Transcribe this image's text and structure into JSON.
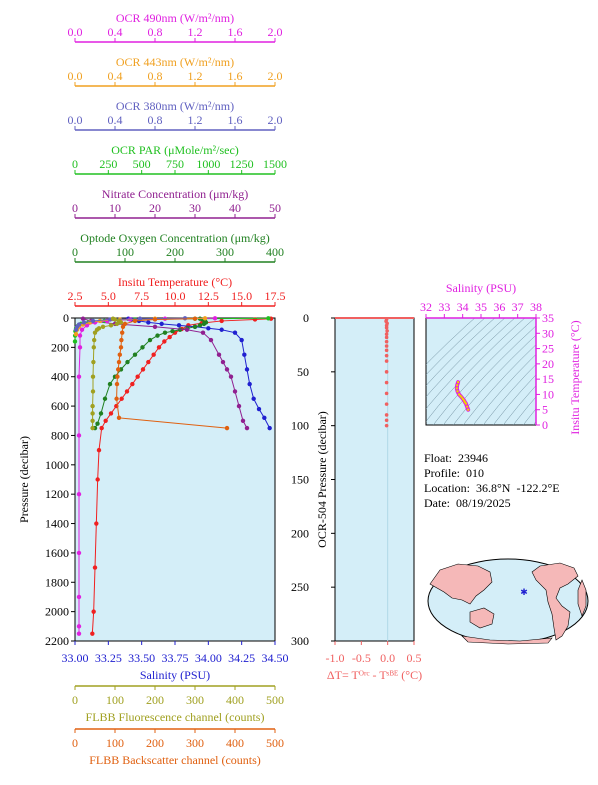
{
  "colors": {
    "ocr490": "#e020e0",
    "ocr443": "#f0a020",
    "ocr380": "#6060c0",
    "par": "#20c020",
    "nitrate": "#902090",
    "oxygen": "#208020",
    "temperature": "#f02020",
    "salinity": "#2020d0",
    "fluor": "#a0a020",
    "backscatter": "#e06010",
    "delta_t": "#f06060",
    "plot_bg": "#d4eef8",
    "magenta_axis": "#e020e0",
    "map_land": "#f5b8b8",
    "map_ocean": "#d4eef8"
  },
  "top_axes": [
    {
      "key": "ocr490",
      "title": "OCR 490nm (W/m²/nm)",
      "ticks": [
        "0.0",
        "0.4",
        "0.8",
        "1.2",
        "1.6",
        "2.0"
      ]
    },
    {
      "key": "ocr443",
      "title": "OCR 443nm (W/m²/nm)",
      "ticks": [
        "0.0",
        "0.4",
        "0.8",
        "1.2",
        "1.6",
        "2.0"
      ]
    },
    {
      "key": "ocr380",
      "title": "OCR 380nm (W/m²/nm)",
      "ticks": [
        "0.0",
        "0.4",
        "0.8",
        "1.2",
        "1.6",
        "2.0"
      ]
    },
    {
      "key": "par",
      "title": "OCR PAR (μMole/m²/sec)",
      "ticks": [
        "0",
        "250",
        "500",
        "750",
        "1000",
        "1250",
        "1500"
      ]
    },
    {
      "key": "nitrate",
      "title": "Nitrate Concentration (μm/kg)",
      "ticks": [
        "0",
        "10",
        "20",
        "30",
        "40",
        "50"
      ]
    },
    {
      "key": "oxygen",
      "title": "Optode Oxygen Concentration (μm/kg)",
      "ticks": [
        "0",
        "100",
        "200",
        "300",
        "400"
      ]
    },
    {
      "key": "temperature",
      "title": "Insitu Temperature (°C)",
      "ticks": [
        "2.5",
        "5.0",
        "7.5",
        "10.0",
        "12.5",
        "15.0",
        "17.5"
      ]
    }
  ],
  "bottom_axes": [
    {
      "key": "salinity",
      "title": "Salinity (PSU)",
      "ticks": [
        "33.00",
        "33.25",
        "33.50",
        "33.75",
        "34.00",
        "34.25",
        "34.50"
      ]
    },
    {
      "key": "fluor",
      "title": "FLBB Fluorescence channel (counts)",
      "ticks": [
        "0",
        "100",
        "200",
        "300",
        "400",
        "500"
      ]
    },
    {
      "key": "backscatter",
      "title": "FLBB Backscatter channel (counts)",
      "ticks": [
        "0",
        "100",
        "200",
        "300",
        "400",
        "500"
      ]
    }
  ],
  "main_y_axis": {
    "title": "Pressure (decibar)",
    "ticks": [
      "0",
      "200",
      "400",
      "600",
      "800",
      "1000",
      "1200",
      "1400",
      "1600",
      "1800",
      "2000",
      "2200"
    ]
  },
  "dt_axis": {
    "title": "ΔT= Tᴼʳᶜ - Tˢᴮᴱ (°C)",
    "x_ticks": [
      "-1.0",
      "-0.5",
      "0.0",
      "0.5"
    ],
    "y_title": "OCR-504 Pressure (decibar)",
    "y_ticks": [
      "0",
      "50",
      "100",
      "150",
      "200",
      "250",
      "300"
    ]
  },
  "ts_axis": {
    "title": "Salinity (PSU)",
    "x_ticks": [
      "32",
      "33",
      "34",
      "35",
      "36",
      "37",
      "38"
    ],
    "y_title": "Insitu Temperature (°C)",
    "y_ticks": [
      "0",
      "5",
      "10",
      "15",
      "20",
      "25",
      "30",
      "35"
    ]
  },
  "info": {
    "float": "Float:  23946",
    "profile": "Profile:  010",
    "location": "Location:  36.8°N  -122.2°E",
    "date": "Date:  08/19/2025"
  },
  "chart_data": [
    {
      "type": "line",
      "title": "",
      "ylabel": "Pressure (decibar)",
      "ylim": [
        2200,
        0
      ],
      "y_inverted": true,
      "series": [
        {
          "name": "Insitu Temperature (°C)",
          "xlim": [
            2.5,
            17.5
          ],
          "x": [
            17.2,
            16.0,
            13.5,
            12.0,
            11.0,
            10.5,
            10.0,
            9.6,
            9.2,
            8.8,
            8.4,
            8.0,
            7.6,
            7.2,
            6.8,
            6.4,
            6.0,
            5.6,
            5.2,
            4.8,
            4.5,
            4.3,
            4.2,
            4.1,
            4.0,
            3.9,
            3.8
          ],
          "y": [
            5,
            10,
            20,
            35,
            50,
            75,
            100,
            130,
            160,
            200,
            250,
            300,
            350,
            400,
            450,
            500,
            550,
            600,
            650,
            700,
            750,
            900,
            1100,
            1400,
            1700,
            2000,
            2150
          ]
        },
        {
          "name": "Salinity (PSU)",
          "xlim": [
            33.0,
            34.5
          ],
          "x": [
            33.4,
            33.42,
            33.48,
            33.55,
            33.65,
            33.78,
            33.9,
            34.0,
            34.1,
            34.2,
            34.25,
            34.27,
            34.29,
            34.31,
            34.34,
            34.38,
            34.42,
            34.46
          ],
          "y": [
            5,
            10,
            20,
            30,
            40,
            50,
            60,
            70,
            80,
            100,
            150,
            250,
            350,
            450,
            550,
            620,
            680,
            750
          ]
        },
        {
          "name": "Optode Oxygen Concentration (μm/kg)",
          "xlim": [
            0,
            400
          ],
          "x": [
            250,
            255,
            260,
            262,
            258,
            250,
            240,
            225,
            210,
            195,
            180,
            165,
            150,
            135,
            120,
            105,
            92,
            80,
            70,
            60,
            52,
            45,
            40
          ],
          "y": [
            5,
            10,
            20,
            30,
            40,
            50,
            60,
            70,
            80,
            90,
            100,
            120,
            150,
            200,
            250,
            300,
            350,
            400,
            450,
            550,
            650,
            720,
            750
          ]
        },
        {
          "name": "Nitrate Concentration (μm/kg)",
          "xlim": [
            0,
            50
          ],
          "x": [
            2,
            4,
            10,
            20,
            28,
            32,
            34,
            36,
            37,
            38,
            39,
            40,
            41,
            42,
            43
          ],
          "y": [
            5,
            20,
            40,
            60,
            80,
            100,
            150,
            250,
            300,
            350,
            400,
            500,
            600,
            700,
            750
          ]
        },
        {
          "name": "OCR PAR (μMole/m²/sec)",
          "xlim": [
            0,
            1500
          ],
          "x": [
            1450,
            900,
            450,
            220,
            100,
            45,
            20,
            8,
            3,
            1,
            0
          ],
          "y": [
            2,
            5,
            10,
            20,
            30,
            40,
            55,
            70,
            90,
            120,
            160
          ]
        },
        {
          "name": "OCR 490nm (W/m²/nm)",
          "xlim": [
            0,
            2.0
          ],
          "x": [
            1.4,
            0.9,
            0.55,
            0.32,
            0.2,
            0.12,
            0.07,
            0.05,
            0.05,
            0.04,
            0.04,
            0.04,
            0.04,
            0.04,
            0.04,
            0.04
          ],
          "y": [
            2,
            5,
            10,
            20,
            30,
            50,
            80,
            120,
            200,
            400,
            800,
            1200,
            1600,
            1900,
            2100,
            2150
          ]
        },
        {
          "name": "OCR 443nm (W/m²/nm)",
          "xlim": [
            0,
            2.0
          ],
          "x": [
            1.3,
            0.8,
            0.45,
            0.25,
            0.15,
            0.08,
            0.04,
            0.02,
            0.01
          ],
          "y": [
            2,
            5,
            10,
            20,
            30,
            45,
            60,
            80,
            110
          ]
        },
        {
          "name": "OCR 380nm (W/m²/nm)",
          "xlim": [
            0,
            2.0
          ],
          "x": [
            1.1,
            0.65,
            0.35,
            0.18,
            0.09,
            0.04,
            0.02,
            0.01
          ],
          "y": [
            2,
            5,
            10,
            20,
            30,
            45,
            60,
            80
          ]
        },
        {
          "name": "FLBB Fluorescence channel (counts)",
          "xlim": [
            0,
            500
          ],
          "x": [
            95,
            100,
            110,
            115,
            105,
            90,
            70,
            60,
            55,
            50,
            48,
            47,
            46,
            45,
            45,
            44,
            44,
            44,
            44
          ],
          "y": [
            5,
            10,
            20,
            30,
            40,
            50,
            60,
            70,
            80,
            100,
            150,
            200,
            300,
            400,
            500,
            600,
            650,
            700,
            750
          ]
        },
        {
          "name": "FLBB Backscatter channel (counts)",
          "xlim": [
            0,
            500
          ],
          "x": [
            300,
            200,
            150,
            125,
            120,
            118,
            116,
            115,
            112,
            110,
            108,
            106,
            105,
            104,
            110,
            380
          ],
          "y": [
            5,
            10,
            20,
            40,
            60,
            100,
            150,
            200,
            250,
            300,
            350,
            400,
            450,
            550,
            680,
            750
          ]
        }
      ]
    },
    {
      "type": "scatter",
      "xlabel": "ΔT= Tᴼʳᶜ - Tˢᴮᴱ (°C)",
      "ylabel": "OCR-504 Pressure (decibar)",
      "xlim": [
        -1.0,
        0.5
      ],
      "ylim": [
        300,
        0
      ],
      "series": [
        {
          "name": "",
          "x": [
            -0.02,
            -0.03,
            -0.01,
            -0.02,
            -0.02,
            -0.01,
            -0.02,
            -0.02,
            -0.02,
            -0.02,
            -0.02,
            -0.02,
            -0.02,
            -0.02,
            -0.02,
            -0.02,
            -0.02,
            -0.02,
            -0.02,
            -0.02
          ],
          "y": [
            1,
            3,
            5,
            7,
            9,
            12,
            15,
            18,
            22,
            26,
            30,
            35,
            40,
            50,
            60,
            70,
            80,
            90,
            95,
            100
          ]
        }
      ]
    },
    {
      "type": "line",
      "xlabel": "Salinity (PSU)",
      "ylabel": "Insitu Temperature (°C)",
      "xlim": [
        32,
        38
      ],
      "ylim": [
        0,
        35
      ],
      "grid": "density contours",
      "series": [
        {
          "name": "",
          "x": [
            33.75,
            33.7,
            33.68,
            33.72,
            33.8,
            33.88,
            33.95,
            34.02,
            34.08,
            34.12,
            34.18,
            34.24,
            34.3
          ],
          "y": [
            14.0,
            13.0,
            12.0,
            11.0,
            10.0,
            9.5,
            9.0,
            8.5,
            8.0,
            7.5,
            7.0,
            6.0,
            5.0
          ]
        }
      ]
    }
  ]
}
